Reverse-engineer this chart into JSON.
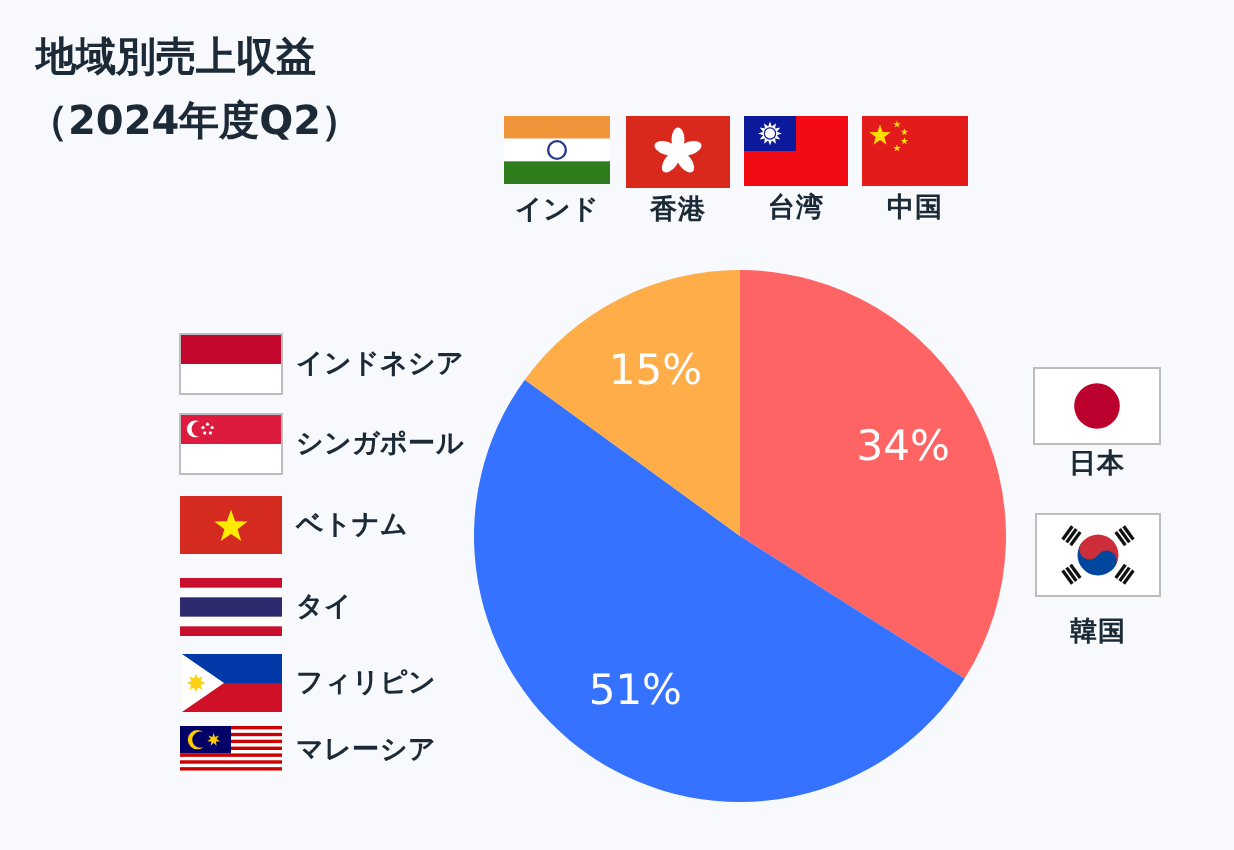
{
  "chart_data": {
    "type": "pie",
    "title": "地域別売上収益（2024年度Q2）",
    "categories": [
      null,
      null,
      null
    ],
    "values": [
      34,
      51,
      15
    ],
    "colors": [
      "#ff6464",
      "#3572ff",
      "#ffad48"
    ],
    "data_labels": true,
    "value_labels": [
      "34%",
      "51%",
      "15%"
    ],
    "annotations": [
      "インド",
      "香港",
      "台湾",
      "中国",
      "インドネシア",
      "シンガポール",
      "ベトナム",
      "タイ",
      "フィリピン",
      "マレーシア",
      "日本",
      "韓国"
    ]
  }
}
